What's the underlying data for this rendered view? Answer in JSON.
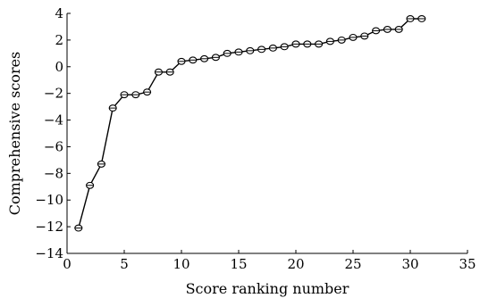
{
  "chart_data": {
    "type": "line",
    "title": "",
    "xlabel": "Score ranking number",
    "ylabel": "Comprehensive scores",
    "xlim": [
      0,
      35
    ],
    "ylim": [
      -14,
      4
    ],
    "xticks": [
      0,
      5,
      10,
      15,
      20,
      25,
      30,
      35
    ],
    "yticks": [
      4,
      2,
      0,
      -2,
      -4,
      -6,
      -8,
      -10,
      -12,
      -14
    ],
    "grid": false,
    "legend": "none",
    "series": [
      {
        "marker": "circle-with-bar",
        "color": "#000000",
        "x": [
          1,
          2,
          3,
          4,
          5,
          6,
          7,
          8,
          9,
          10,
          11,
          12,
          13,
          14,
          15,
          16,
          17,
          18,
          19,
          20,
          21,
          22,
          23,
          24,
          25,
          26,
          27,
          28,
          29,
          30,
          31
        ],
        "y": [
          -12.1,
          -8.9,
          -7.3,
          -3.1,
          -2.1,
          -2.1,
          -1.9,
          -0.4,
          -0.4,
          0.4,
          0.5,
          0.6,
          0.7,
          1.0,
          1.1,
          1.2,
          1.3,
          1.4,
          1.5,
          1.7,
          1.7,
          1.7,
          1.9,
          2.0,
          2.2,
          2.3,
          2.7,
          2.8,
          2.8,
          3.6,
          3.6
        ]
      }
    ]
  }
}
